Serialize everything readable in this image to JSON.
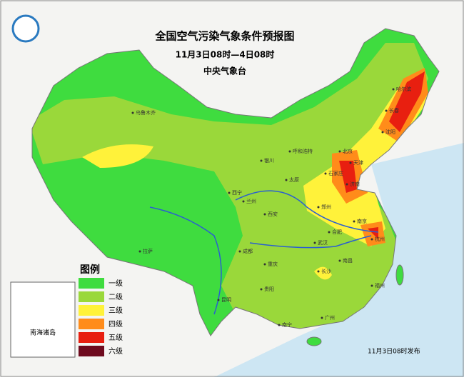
{
  "header": {
    "title": "全国空气污染气象条件预报图",
    "subtitle": "11月3日08时—4日08时",
    "issuer": "中央气象台"
  },
  "legend": {
    "title": "图例",
    "items": [
      {
        "label": "一级",
        "color": "#3fdc3f"
      },
      {
        "label": "二级",
        "color": "#9ad83a"
      },
      {
        "label": "三级",
        "color": "#fff23a"
      },
      {
        "label": "四级",
        "color": "#ff8c1a"
      },
      {
        "label": "五级",
        "color": "#e81f10"
      },
      {
        "label": "六级",
        "color": "#6e0a1e"
      }
    ]
  },
  "inset": {
    "label": "南海诸岛"
  },
  "footer": "11月3日08时发布",
  "cities": [
    "乌鲁木齐",
    "拉萨",
    "西宁",
    "兰州",
    "银川",
    "呼和浩特",
    "太原",
    "石家庄",
    "北京",
    "天津",
    "济南",
    "郑州",
    "西安",
    "成都",
    "重庆",
    "贵阳",
    "昆明",
    "南宁",
    "广州",
    "长沙",
    "武汉",
    "南昌",
    "合肥",
    "南京",
    "杭州",
    "福州",
    "哈尔滨",
    "长春",
    "沈阳"
  ]
}
